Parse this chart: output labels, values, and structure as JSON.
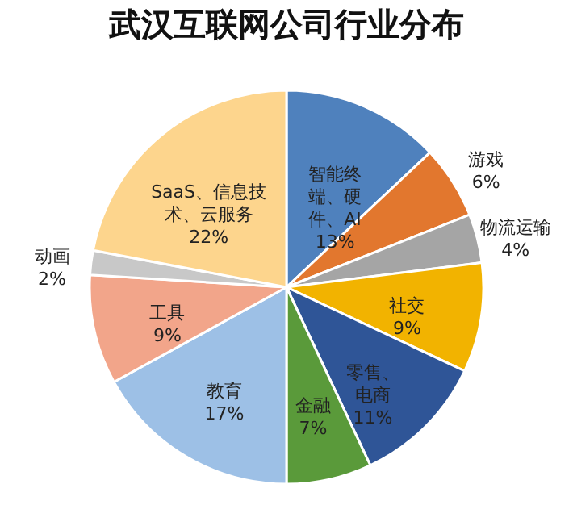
{
  "chart_data": {
    "type": "pie",
    "title": "武汉互联网公司行业分布",
    "categories": [
      "智能终端、硬件、AI",
      "游戏",
      "物流运输",
      "社交",
      "零售、电商",
      "金融",
      "教育",
      "工具",
      "动画",
      "SaaS、信息技术、云服务"
    ],
    "values": [
      13,
      6,
      4,
      9,
      11,
      7,
      17,
      9,
      2,
      22
    ],
    "value_labels": [
      "13%",
      "6%",
      "4%",
      "9%",
      "11%",
      "7%",
      "17%",
      "9%",
      "2%",
      "22%"
    ],
    "colors": [
      "#4f81bd",
      "#e2772e",
      "#a5a5a5",
      "#f2b300",
      "#2f5597",
      "#5a9a3a",
      "#9dc0e6",
      "#f2a58a",
      "#c8c8c8",
      "#fdd58d"
    ],
    "legend": false
  }
}
